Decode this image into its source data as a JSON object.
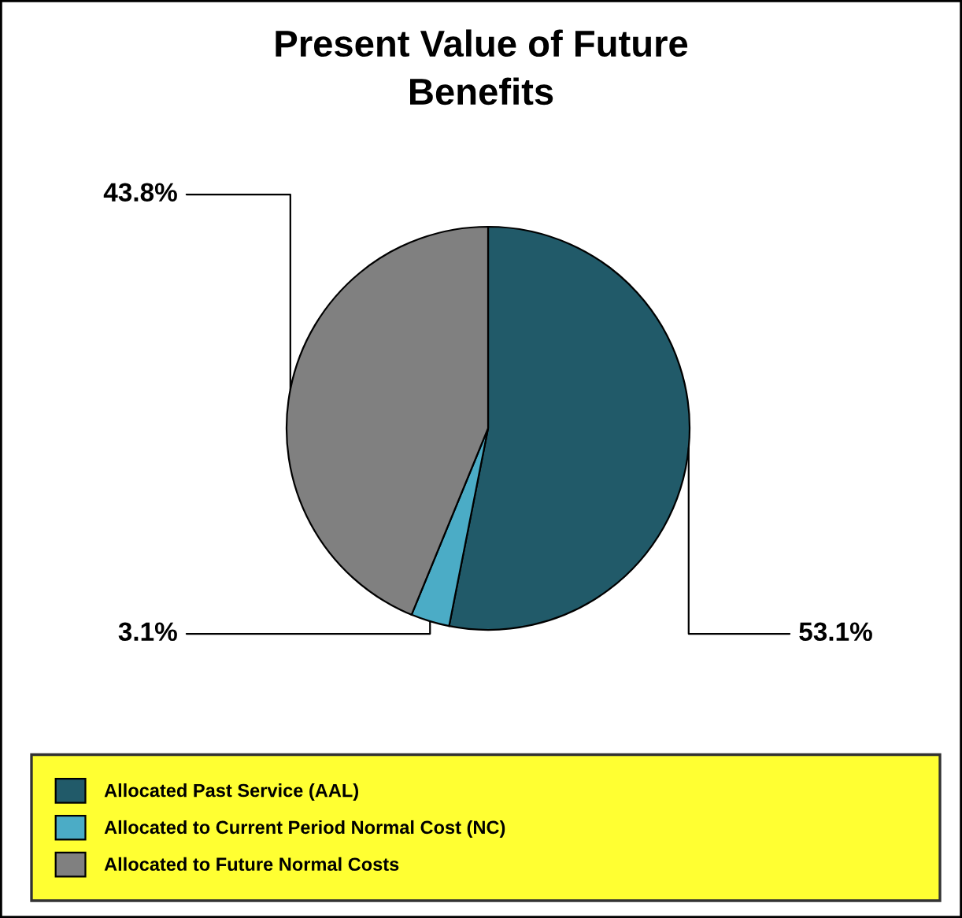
{
  "chart_data": {
    "type": "pie",
    "title": "Present Value of Future\nBenefits",
    "categories": [
      "Allocated Past Service (AAL)",
      "Allocated to Current Period Normal Cost (NC)",
      "Allocated to Future Normal Costs"
    ],
    "values": [
      53.1,
      3.1,
      43.8
    ],
    "colors": [
      "#215a69",
      "#4bacc6",
      "#808080"
    ],
    "value_labels": [
      "53.1%",
      "3.1%",
      "43.8%"
    ],
    "legend": "bottom"
  }
}
